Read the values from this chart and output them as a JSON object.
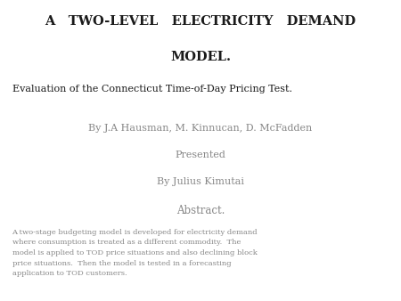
{
  "background_color": "#ffffff",
  "title_line1": "A   TWO-LEVEL   ELECTRICITY   DEMAND",
  "title_line2": "MODEL.",
  "subtitle": "Evaluation of the Connecticut Time-of-Day Pricing Test.",
  "authors_line1": "By J.A Hausman, M. Kinnucan, D. McFadden",
  "authors_line2": "Presented",
  "authors_line3": "By Julius Kimutai",
  "abstract_header": "Abstract.",
  "abstract_body": "A two-stage budgeting model is developed for electricity demand\nwhere consumption is treated as a different commodity.  The\nmodel is applied to TOD price situations and also declining block\nprice situations.  Then the model is tested in a forecasting\napplication to TOD customers.",
  "title_color": "#1a1a1a",
  "subtitle_color": "#1a1a1a",
  "authors_color": "#888888",
  "abstract_header_color": "#888888",
  "abstract_body_color": "#888888",
  "title_fontsize": 10.5,
  "subtitle_fontsize": 8.0,
  "authors_fontsize": 8.0,
  "abstract_header_fontsize": 8.5,
  "abstract_body_fontsize": 6.0
}
